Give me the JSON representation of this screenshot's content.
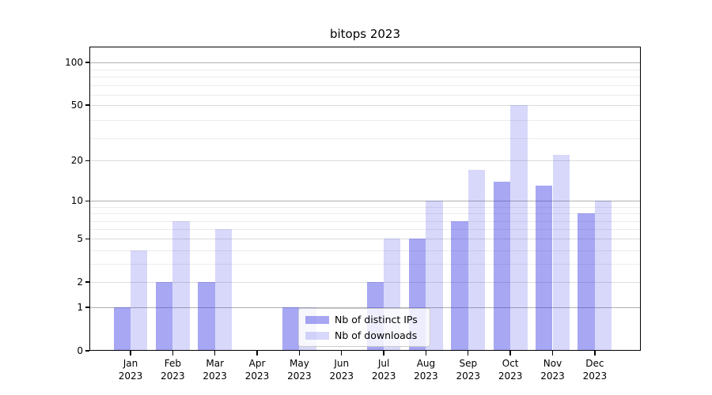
{
  "figure_title": "bitops 2023",
  "chart_data": {
    "type": "bar",
    "title": "bitops 2023",
    "categories": [
      "Jan",
      "Feb",
      "Mar",
      "Apr",
      "May",
      "Jun",
      "Jul",
      "Aug",
      "Sep",
      "Oct",
      "Nov",
      "Dec"
    ],
    "year_label": "2023",
    "series": [
      {
        "name": "Nb of distinct IPs",
        "color": "#3c3ce6",
        "alpha": 0.45,
        "values": [
          1,
          2,
          2,
          0,
          1,
          0,
          2,
          5,
          7,
          14,
          13,
          8
        ]
      },
      {
        "name": "Nb of downloads",
        "color": "#3c3ce6",
        "alpha": 0.2,
        "values": [
          4,
          7,
          6,
          0,
          1,
          0,
          5,
          10,
          17,
          50,
          22,
          10
        ]
      }
    ],
    "yscale": "log1p",
    "yticks": [
      0,
      1,
      2,
      5,
      10,
      20,
      50,
      100
    ],
    "grid": true,
    "legend_position": "lower center inside",
    "colors": {
      "grid_major": "#b0b0b0",
      "grid_mid": "#dcdcdc",
      "grid_minor": "#ececec",
      "axis": "#000000",
      "legend_border": "#cccccc"
    }
  }
}
